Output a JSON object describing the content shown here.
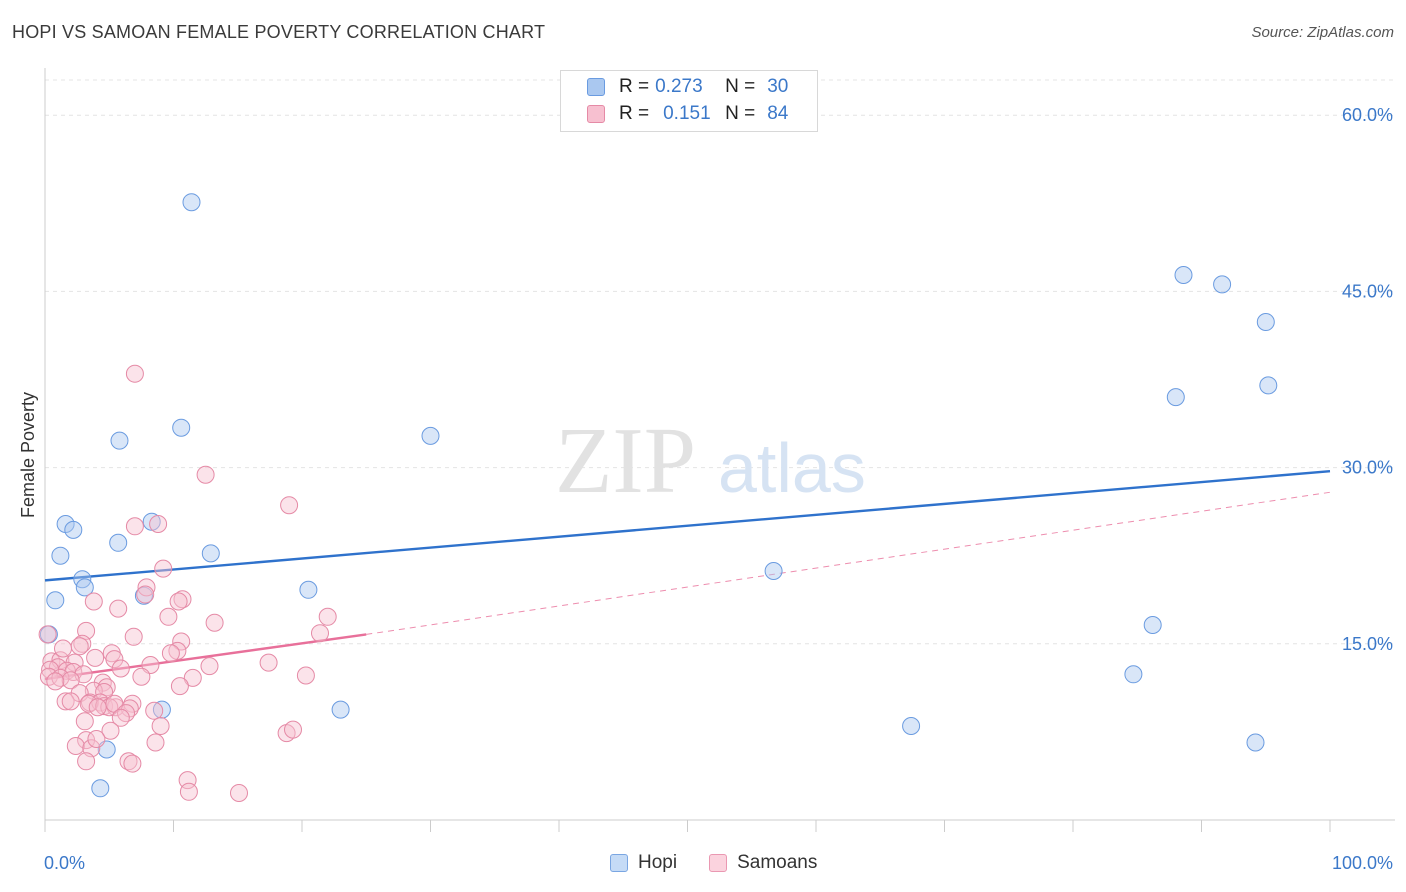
{
  "title": "HOPI VS SAMOAN FEMALE POVERTY CORRELATION CHART",
  "source": "Source: ZipAtlas.com",
  "watermark": {
    "zip": "ZIP",
    "atlas": "atlas"
  },
  "legend": {
    "rows": [
      {
        "r_label": "R =",
        "r_value": "0.273",
        "n_label": "N =",
        "n_value": "30",
        "color": "#aac8f0",
        "border": "#6a9be0"
      },
      {
        "r_label": "R =",
        "r_value": "0.151",
        "n_label": "N =",
        "n_value": "84",
        "color": "#f7c0d0",
        "border": "#e58aa6"
      }
    ]
  },
  "bottom_legend": [
    {
      "label": "Hopi",
      "color": "#c5dbf6",
      "border": "#7aa6e2"
    },
    {
      "label": "Samoans",
      "color": "#fbd3de",
      "border": "#ea98b2"
    }
  ],
  "chart_data": {
    "type": "scatter",
    "title": "HOPI VS SAMOAN FEMALE POVERTY CORRELATION CHART",
    "xlabel": "",
    "ylabel": "Female Poverty",
    "xlim": [
      0,
      100
    ],
    "ylim": [
      0,
      63
    ],
    "x_tick_labels": [
      {
        "value": 0,
        "label": "0.0%"
      },
      {
        "value": 100,
        "label": "100.0%"
      }
    ],
    "y_tick_labels": [
      {
        "value": 15,
        "label": "15.0%"
      },
      {
        "value": 30,
        "label": "30.0%"
      },
      {
        "value": 45,
        "label": "45.0%"
      },
      {
        "value": 60,
        "label": "60.0%"
      }
    ],
    "series": [
      {
        "name": "Hopi",
        "color": "#6a9be0",
        "fill": "rgba(170,200,240,0.45)",
        "points": [
          [
            11.4,
            52.6
          ],
          [
            88.6,
            46.4
          ],
          [
            91.6,
            45.6
          ],
          [
            95.0,
            42.4
          ],
          [
            88.0,
            36.0
          ],
          [
            95.2,
            37.0
          ],
          [
            10.6,
            33.4
          ],
          [
            5.8,
            32.3
          ],
          [
            30.0,
            32.7
          ],
          [
            1.6,
            25.2
          ],
          [
            2.2,
            24.7
          ],
          [
            8.3,
            25.4
          ],
          [
            1.2,
            22.5
          ],
          [
            5.7,
            23.6
          ],
          [
            12.9,
            22.7
          ],
          [
            2.9,
            20.5
          ],
          [
            3.1,
            19.8
          ],
          [
            7.7,
            19.1
          ],
          [
            20.5,
            19.6
          ],
          [
            56.7,
            21.2
          ],
          [
            0.8,
            18.7
          ],
          [
            0.3,
            15.8
          ],
          [
            86.2,
            16.6
          ],
          [
            84.7,
            12.4
          ],
          [
            9.1,
            9.4
          ],
          [
            23.0,
            9.4
          ],
          [
            67.4,
            8.0
          ],
          [
            4.8,
            6.0
          ],
          [
            94.2,
            6.6
          ],
          [
            4.3,
            2.7
          ]
        ]
      },
      {
        "name": "Samoans",
        "color": "#e58aa6",
        "fill": "rgba(247,192,208,0.45)",
        "points": [
          [
            7.0,
            38.0
          ],
          [
            12.5,
            29.4
          ],
          [
            19.0,
            26.8
          ],
          [
            7.0,
            25.0
          ],
          [
            8.8,
            25.2
          ],
          [
            9.2,
            21.4
          ],
          [
            7.9,
            19.8
          ],
          [
            7.8,
            19.2
          ],
          [
            10.7,
            18.8
          ],
          [
            10.4,
            18.6
          ],
          [
            3.8,
            18.6
          ],
          [
            5.7,
            18.0
          ],
          [
            22.0,
            17.3
          ],
          [
            13.2,
            16.8
          ],
          [
            3.2,
            16.1
          ],
          [
            21.4,
            15.9
          ],
          [
            0.2,
            15.8
          ],
          [
            10.6,
            15.2
          ],
          [
            2.9,
            15.0
          ],
          [
            10.3,
            14.4
          ],
          [
            9.8,
            14.2
          ],
          [
            5.2,
            14.2
          ],
          [
            5.4,
            13.7
          ],
          [
            0.5,
            13.5
          ],
          [
            1.2,
            13.6
          ],
          [
            2.3,
            13.4
          ],
          [
            17.4,
            13.4
          ],
          [
            8.2,
            13.2
          ],
          [
            12.8,
            13.1
          ],
          [
            1.0,
            13.0
          ],
          [
            0.4,
            12.8
          ],
          [
            1.7,
            12.7
          ],
          [
            2.2,
            12.6
          ],
          [
            3.0,
            12.4
          ],
          [
            20.3,
            12.3
          ],
          [
            11.5,
            12.1
          ],
          [
            0.3,
            12.2
          ],
          [
            1.2,
            12.1
          ],
          [
            2.0,
            11.9
          ],
          [
            4.5,
            11.7
          ],
          [
            0.8,
            11.8
          ],
          [
            4.8,
            11.3
          ],
          [
            3.8,
            11.0
          ],
          [
            4.6,
            10.9
          ],
          [
            2.7,
            10.8
          ],
          [
            1.6,
            10.1
          ],
          [
            3.5,
            10.0
          ],
          [
            2.0,
            10.1
          ],
          [
            4.3,
            10.0
          ],
          [
            3.4,
            9.9
          ],
          [
            4.6,
            9.7
          ],
          [
            5.5,
            9.6
          ],
          [
            5.0,
            9.6
          ],
          [
            6.8,
            9.9
          ],
          [
            6.6,
            9.5
          ],
          [
            8.5,
            9.3
          ],
          [
            5.4,
            9.9
          ],
          [
            4.1,
            9.6
          ],
          [
            6.3,
            9.1
          ],
          [
            5.9,
            8.7
          ],
          [
            3.1,
            8.4
          ],
          [
            9.0,
            8.0
          ],
          [
            5.1,
            7.6
          ],
          [
            3.2,
            6.8
          ],
          [
            18.8,
            7.4
          ],
          [
            19.3,
            7.7
          ],
          [
            8.6,
            6.6
          ],
          [
            2.4,
            6.3
          ],
          [
            3.6,
            6.1
          ],
          [
            3.2,
            5.0
          ],
          [
            4.0,
            6.9
          ],
          [
            6.5,
            5.0
          ],
          [
            6.8,
            4.8
          ],
          [
            11.1,
            3.4
          ],
          [
            11.2,
            2.4
          ],
          [
            15.1,
            2.3
          ],
          [
            10.5,
            11.4
          ],
          [
            9.6,
            17.3
          ],
          [
            2.7,
            14.8
          ],
          [
            5.9,
            12.9
          ],
          [
            7.5,
            12.2
          ],
          [
            1.4,
            14.6
          ],
          [
            3.9,
            13.8
          ],
          [
            6.9,
            15.6
          ]
        ]
      }
    ],
    "trendlines": [
      {
        "series": "Hopi",
        "x": [
          0,
          100
        ],
        "y": [
          20.4,
          29.7
        ],
        "style": "solid"
      },
      {
        "series": "Samoans",
        "x": [
          0,
          25
        ],
        "y": [
          12.0,
          15.8
        ],
        "style": "solid"
      },
      {
        "series": "Samoans",
        "x": [
          25,
          100
        ],
        "y": [
          15.8,
          27.9
        ],
        "style": "dashed"
      }
    ]
  }
}
